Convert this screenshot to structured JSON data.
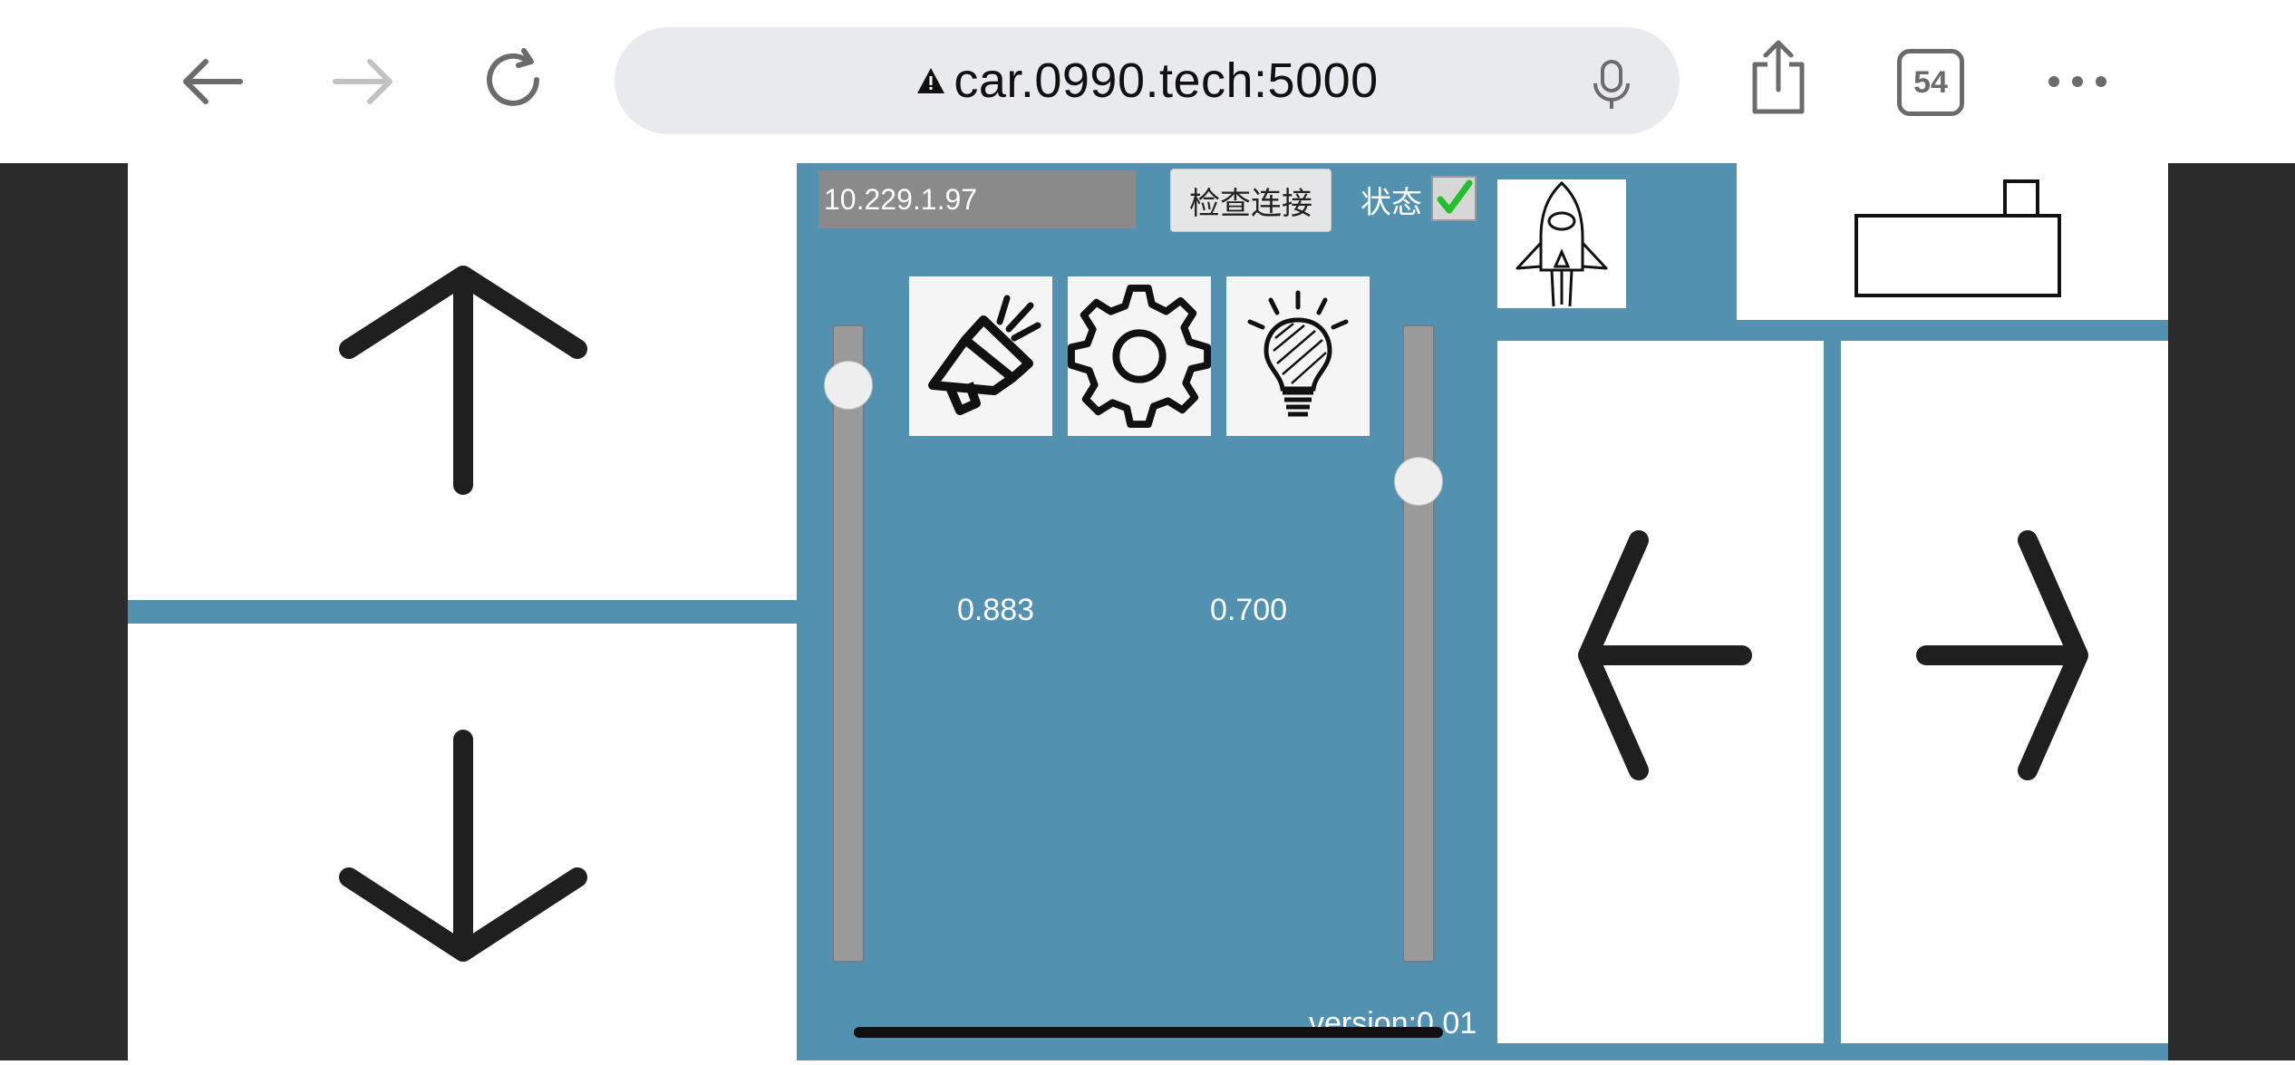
{
  "browser": {
    "url": "car.0990.tech:5000",
    "tab_count": "54",
    "icons": [
      "back-arrow-icon",
      "forward-arrow-icon",
      "reload-icon",
      "warning-icon",
      "mic-icon",
      "share-icon",
      "tabs-icon",
      "more-icon"
    ]
  },
  "controls": {
    "ip_value": "10.229.1.97",
    "check_button_label": "检查连接",
    "status_label": "状态",
    "status_checked": true,
    "speed_value": "0.883",
    "steer_value": "0.700",
    "speed_level": 0.883,
    "steer_level": 0.7,
    "version": "version:0.01"
  },
  "icons": {
    "up": "up-arrow-icon",
    "down": "down-arrow-icon",
    "left": "left-arrow-icon",
    "right": "right-arrow-icon",
    "horn": "megaphone-icon",
    "settings": "gear-icon",
    "light": "lightbulb-icon",
    "rocket": "rocket-icon",
    "camera": "camera-icon"
  },
  "colors": {
    "background": "#5391b0",
    "checkmark": "#22c02a"
  }
}
